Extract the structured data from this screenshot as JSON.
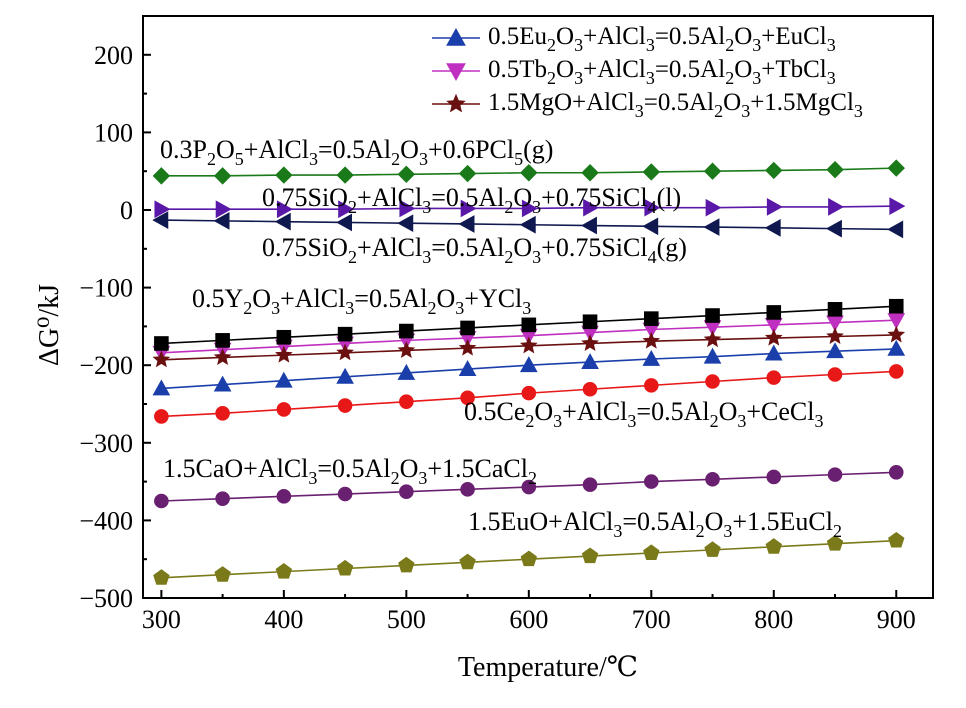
{
  "chart_data": {
    "type": "line",
    "xlabel": "Temperature/℃",
    "ylabel": "ΔG⁰/kJ",
    "xlim": [
      285,
      930
    ],
    "ylim": [
      -500,
      250
    ],
    "xticks": [
      300,
      400,
      500,
      600,
      700,
      800,
      900
    ],
    "yticks": [
      -500,
      -400,
      -300,
      -200,
      -100,
      0,
      100,
      200
    ],
    "x": [
      300,
      350,
      400,
      450,
      500,
      550,
      600,
      650,
      700,
      750,
      800,
      850,
      900
    ],
    "legend_position": "top-right",
    "series": [
      {
        "key": "eu2o3",
        "name": "0.5Eu2O3+AlCl3=0.5Al2O3+EuCl3",
        "name_rich": [
          [
            "0.5Eu",
            ""
          ],
          [
            "2",
            "sub"
          ],
          [
            "O",
            ""
          ],
          [
            "3",
            "sub"
          ],
          [
            "+AlCl",
            ""
          ],
          [
            "3",
            "sub"
          ],
          [
            "=0.5Al",
            ""
          ],
          [
            "2",
            "sub"
          ],
          [
            "O",
            ""
          ],
          [
            "3",
            "sub"
          ],
          [
            "+EuCl",
            ""
          ],
          [
            "3",
            "sub"
          ]
        ],
        "color": "#1b3faa",
        "marker": "triangle-up",
        "in_legend": true,
        "values": [
          -230,
          -225,
          -220,
          -215,
          -210,
          -205,
          -200,
          -196,
          -192,
          -189,
          -185,
          -182,
          -179
        ]
      },
      {
        "key": "tb2o3",
        "name": "0.5Tb2O3+AlCl3=0.5Al2O3+TbCl3",
        "name_rich": [
          [
            "0.5Tb",
            ""
          ],
          [
            "2",
            "sub"
          ],
          [
            "O",
            ""
          ],
          [
            "3",
            "sub"
          ],
          [
            "+AlCl",
            ""
          ],
          [
            "3",
            "sub"
          ],
          [
            "=0.5Al",
            ""
          ],
          [
            "2",
            "sub"
          ],
          [
            "O",
            ""
          ],
          [
            "3",
            "sub"
          ],
          [
            "+TbCl",
            ""
          ],
          [
            "3",
            "sub"
          ]
        ],
        "color": "#c030c0",
        "marker": "triangle-down",
        "in_legend": true,
        "values": [
          -184,
          -180,
          -176,
          -172,
          -168,
          -165,
          -162,
          -158,
          -154,
          -151,
          -148,
          -145,
          -142
        ]
      },
      {
        "key": "mgo",
        "name": "1.5MgO+AlCl3=0.5Al2O3+1.5MgCl3",
        "name_rich": [
          [
            "1.5MgO+AlCl",
            ""
          ],
          [
            "3",
            "sub"
          ],
          [
            "=0.5Al",
            ""
          ],
          [
            "2",
            "sub"
          ],
          [
            "O",
            ""
          ],
          [
            "3",
            "sub"
          ],
          [
            "+1.5MgCl",
            ""
          ],
          [
            "3",
            "sub"
          ]
        ],
        "color": "#6a1010",
        "marker": "star",
        "in_legend": true,
        "values": [
          -193,
          -190,
          -187,
          -184,
          -181,
          -178,
          -175,
          -172,
          -169,
          -167,
          -165,
          -163,
          -161
        ]
      },
      {
        "key": "p2o5",
        "color": "#1a7a1a",
        "marker": "diamond",
        "in_legend": false,
        "values": [
          44,
          44,
          45,
          45,
          46,
          47,
          48,
          48,
          49,
          50,
          51,
          52,
          54
        ]
      },
      {
        "key": "sio2_l",
        "color": "#5a18a8",
        "marker": "triangle-right",
        "in_legend": false,
        "values": [
          1,
          1,
          1,
          1,
          2,
          2,
          2,
          3,
          3,
          3,
          4,
          4,
          5
        ]
      },
      {
        "key": "sio2_g",
        "color": "#101850",
        "marker": "triangle-left",
        "in_legend": false,
        "values": [
          -13,
          -14,
          -15,
          -16,
          -17,
          -18,
          -19,
          -20,
          -21,
          -22,
          -23,
          -24,
          -25
        ]
      },
      {
        "key": "y2o3",
        "color": "#000000",
        "marker": "square",
        "in_legend": false,
        "values": [
          -172,
          -168,
          -164,
          -160,
          -156,
          -152,
          -148,
          -144,
          -140,
          -136,
          -132,
          -128,
          -124
        ]
      },
      {
        "key": "ce2o3",
        "color": "#e81818",
        "marker": "circle",
        "in_legend": false,
        "values": [
          -266,
          -262,
          -257,
          -252,
          -247,
          -242,
          -236,
          -231,
          -226,
          -221,
          -216,
          -212,
          -208
        ]
      },
      {
        "key": "cao",
        "color": "#6a2070",
        "marker": "circle",
        "in_legend": false,
        "values": [
          -375,
          -372,
          -369,
          -366,
          -363,
          -360,
          -357,
          -354,
          -350,
          -347,
          -344,
          -341,
          -338
        ]
      },
      {
        "key": "euo",
        "color": "#7a7a1a",
        "marker": "pentagon",
        "in_legend": false,
        "values": [
          -474,
          -470,
          -466,
          -462,
          -458,
          -454,
          -450,
          -446,
          -442,
          -438,
          -434,
          -430,
          -426
        ]
      }
    ],
    "annotations": [
      {
        "key": "p2o5",
        "text": "0.3P2O5+AlCl3=0.5Al2O3+0.6PCl5(g)",
        "rich": [
          [
            "0.3P",
            ""
          ],
          [
            "2",
            "sub"
          ],
          [
            "O",
            ""
          ],
          [
            "5",
            "sub"
          ],
          [
            "+AlCl",
            ""
          ],
          [
            "3",
            "sub"
          ],
          [
            "=0.5Al",
            ""
          ],
          [
            "2",
            "sub"
          ],
          [
            "O",
            ""
          ],
          [
            "3",
            "sub"
          ],
          [
            "+0.6PCl",
            ""
          ],
          [
            "5",
            "sub"
          ],
          [
            "(g)",
            ""
          ]
        ]
      },
      {
        "key": "sio2_l",
        "text": "0.75SiO2+AlCl3=0.5Al2O3+0.75SiCl4(l)",
        "rich": [
          [
            "0.75SiO",
            ""
          ],
          [
            "2",
            "sub"
          ],
          [
            "+AlCl",
            ""
          ],
          [
            "3",
            "sub"
          ],
          [
            "=0.5Al",
            ""
          ],
          [
            "2",
            "sub"
          ],
          [
            "O",
            ""
          ],
          [
            "3",
            "sub"
          ],
          [
            "+0.75SiCl",
            ""
          ],
          [
            "4",
            "sub"
          ],
          [
            "(l)",
            ""
          ]
        ]
      },
      {
        "key": "sio2_g",
        "text": "0.75SiO2+AlCl3=0.5Al2O3+0.75SiCl4(g)",
        "rich": [
          [
            "0.75SiO",
            ""
          ],
          [
            "2",
            "sub"
          ],
          [
            "+AlCl",
            ""
          ],
          [
            "3",
            "sub"
          ],
          [
            "=0.5Al",
            ""
          ],
          [
            "2",
            "sub"
          ],
          [
            "O",
            ""
          ],
          [
            "3",
            "sub"
          ],
          [
            "+0.75SiCl",
            ""
          ],
          [
            "4",
            "sub"
          ],
          [
            "(g)",
            ""
          ]
        ]
      },
      {
        "key": "y2o3",
        "text": "0.5Y2O3+AlCl3=0.5Al2O3+YCl3",
        "rich": [
          [
            "0.5Y",
            ""
          ],
          [
            "2",
            "sub"
          ],
          [
            "O",
            ""
          ],
          [
            "3",
            "sub"
          ],
          [
            "+AlCl",
            ""
          ],
          [
            "3",
            "sub"
          ],
          [
            "=0.5Al",
            ""
          ],
          [
            "2",
            "sub"
          ],
          [
            "O",
            ""
          ],
          [
            "3",
            "sub"
          ],
          [
            "+YCl",
            ""
          ],
          [
            "3",
            "sub"
          ]
        ]
      },
      {
        "key": "ce2o3",
        "text": "0.5Ce2O3+AlCl3=0.5Al2O3+CeCl3",
        "rich": [
          [
            "0.5Ce",
            ""
          ],
          [
            "2",
            "sub"
          ],
          [
            "O",
            ""
          ],
          [
            "3",
            "sub"
          ],
          [
            "+AlCl",
            ""
          ],
          [
            "3",
            "sub"
          ],
          [
            "=0.5Al",
            ""
          ],
          [
            "2",
            "sub"
          ],
          [
            "O",
            ""
          ],
          [
            "3",
            "sub"
          ],
          [
            "+CeCl",
            ""
          ],
          [
            "3",
            "sub"
          ]
        ]
      },
      {
        "key": "cao",
        "text": "1.5CaO+AlCl3=0.5Al2O3+1.5CaCl2",
        "rich": [
          [
            "1.5CaO+AlCl",
            ""
          ],
          [
            "3",
            "sub"
          ],
          [
            "=0.5Al",
            ""
          ],
          [
            "2",
            "sub"
          ],
          [
            "O",
            ""
          ],
          [
            "3",
            "sub"
          ],
          [
            "+1.5CaCl",
            ""
          ],
          [
            "2",
            "sub"
          ]
        ]
      },
      {
        "key": "euo",
        "text": "1.5EuO+AlCl3=0.5Al2O3+1.5EuCl2",
        "rich": [
          [
            "1.5EuO+AlCl",
            ""
          ],
          [
            "3",
            "sub"
          ],
          [
            "=0.5Al",
            ""
          ],
          [
            "2",
            "sub"
          ],
          [
            "O",
            ""
          ],
          [
            "3",
            "sub"
          ],
          [
            "+1.5EuCl",
            ""
          ],
          [
            "2",
            "sub"
          ]
        ]
      }
    ]
  }
}
